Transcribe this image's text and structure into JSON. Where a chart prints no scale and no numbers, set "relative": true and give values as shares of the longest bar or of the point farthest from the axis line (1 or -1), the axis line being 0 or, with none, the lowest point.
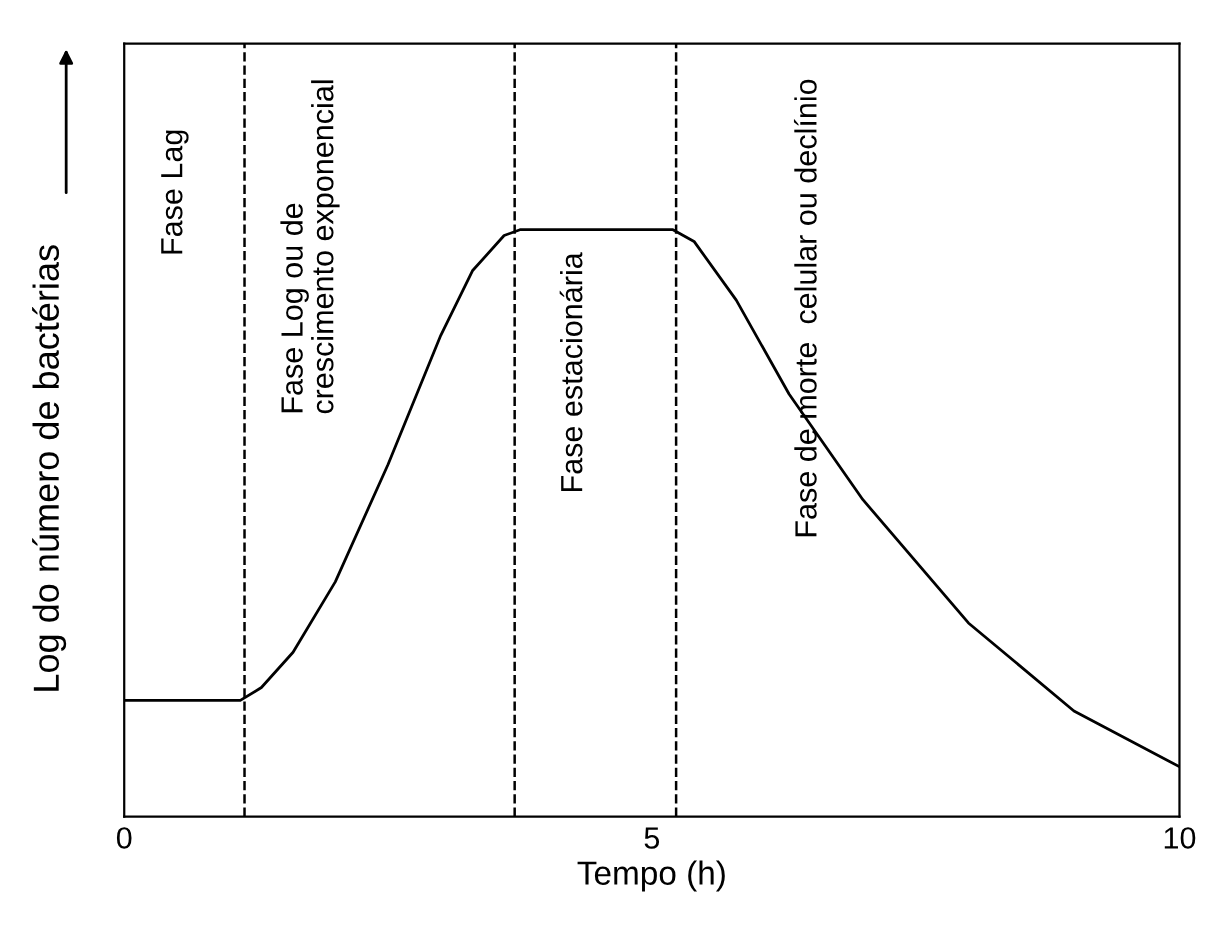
{
  "chart_data": {
    "type": "line",
    "relative": true,
    "xlabel": "Tempo (h)",
    "ylabel": "Log do número de bactérias",
    "xlim": [
      0,
      10
    ],
    "xticks": [
      0,
      5,
      10
    ],
    "tick_labels": "x",
    "grid": false,
    "legend": false,
    "marker": "none",
    "line_style": "solid",
    "series": [
      {
        "color": "#000000",
        "x": [
          0,
          1.1,
          1.3,
          1.6,
          2.0,
          2.5,
          3.0,
          3.3,
          3.6,
          3.75,
          5.2,
          5.4,
          5.8,
          6.3,
          7,
          8,
          9,
          10
        ],
        "values": [
          0.198,
          0.198,
          0.22,
          0.28,
          0.4,
          0.6,
          0.82,
          0.93,
          0.99,
          1,
          1,
          0.98,
          0.88,
          0.72,
          0.54,
          0.33,
          0.18,
          0.085
        ]
      }
    ],
    "ref_lines": [
      {
        "axis": "x",
        "value": 1.14,
        "line_style": "dashed",
        "color": "#000000"
      },
      {
        "axis": "x",
        "value": 3.7,
        "line_style": "dashed",
        "color": "#000000"
      },
      {
        "axis": "x",
        "value": 5.23,
        "line_style": "dashed",
        "color": "#000000"
      }
    ],
    "annotations": [
      "Fase Lag",
      "Fase Log ou de\ncrescimento exponencial",
      "Fase estacionária",
      "Fase de morte  celular ou declínio"
    ]
  }
}
